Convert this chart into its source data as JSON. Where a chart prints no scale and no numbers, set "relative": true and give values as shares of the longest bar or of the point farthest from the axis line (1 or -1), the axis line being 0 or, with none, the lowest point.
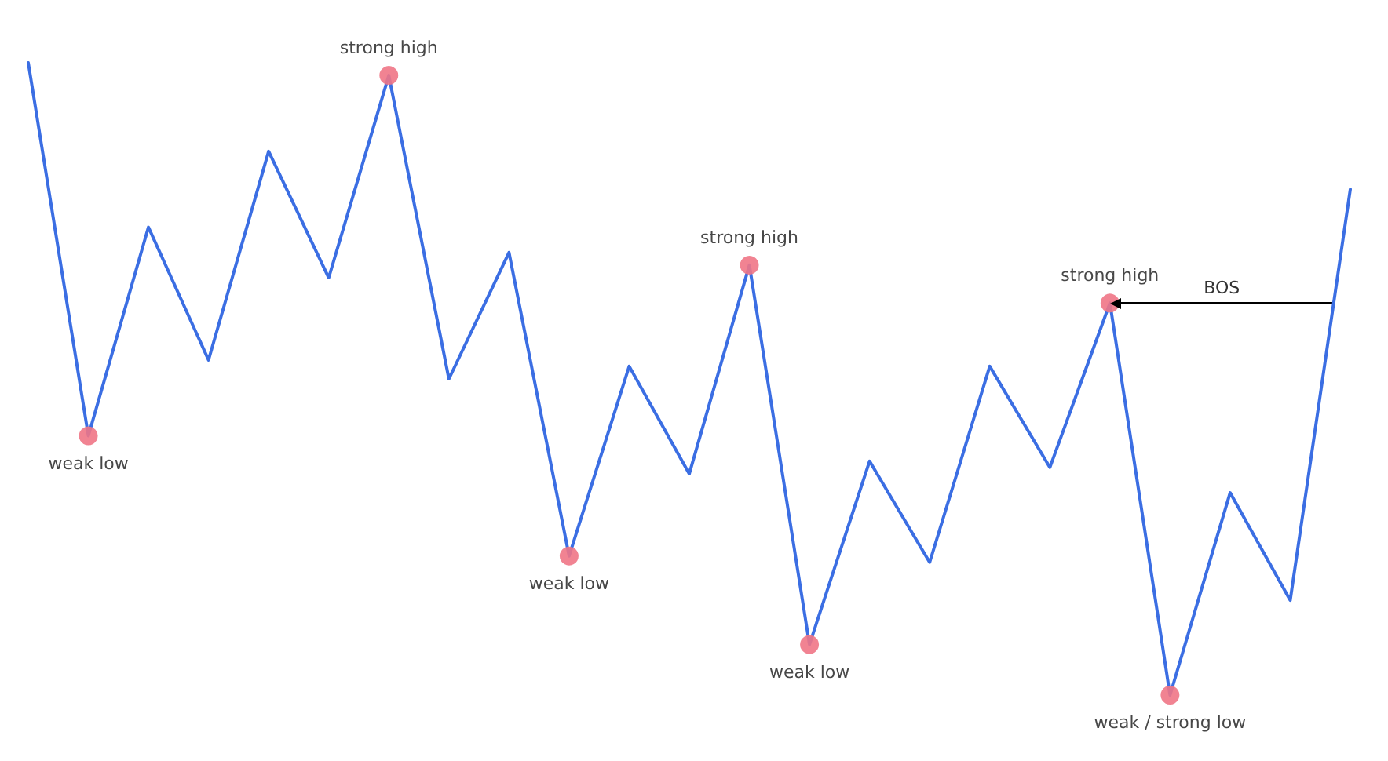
{
  "chart_data": {
    "type": "line",
    "relative": true,
    "line_style": "solid",
    "color": "#3b6ee3",
    "marker": "none",
    "categories": [
      null,
      null,
      null,
      null,
      null,
      null,
      null,
      null,
      null,
      null,
      null,
      null,
      null,
      null,
      null,
      null,
      null,
      null,
      null,
      null,
      null,
      null,
      null
    ],
    "values": [
      1.0,
      0.41,
      0.74,
      0.53,
      0.86,
      0.66,
      0.98,
      0.5,
      0.7,
      0.22,
      0.52,
      0.35,
      0.68,
      0.08,
      0.37,
      0.21,
      0.52,
      0.36,
      0.62,
      0.0,
      0.32,
      0.15,
      0.8
    ],
    "annotations": [
      {
        "text": "weak low",
        "y": 0.41
      },
      {
        "text": "strong high",
        "y": 0.98
      },
      {
        "text": "weak low",
        "y": 0.22
      },
      {
        "text": "strong high",
        "y": 0.68
      },
      {
        "text": "weak low",
        "y": 0.08
      },
      {
        "text": "strong high",
        "y": 0.62
      },
      {
        "text": "weak / strong low",
        "y": 0.0
      }
    ],
    "ref_lines": [
      {
        "axis": "y",
        "value": 0.62,
        "label": "BOS",
        "color": "#000000"
      }
    ]
  }
}
